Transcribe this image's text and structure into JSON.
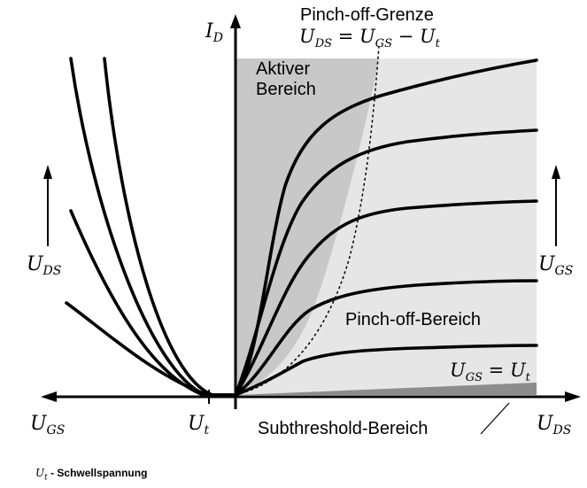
{
  "axes": {
    "id_label": "I",
    "id_sub": "D",
    "uds_label": "U",
    "uds_sub": "DS",
    "ugs_label": "U",
    "ugs_sub": "GS",
    "ut_label": "U",
    "ut_sub": "t"
  },
  "regions": {
    "active_line1": "Aktiver",
    "active_line2": "Bereich",
    "pinchoff_region": "Pinch-off-Bereich",
    "subthreshold_region": "Subthreshold-Bereich"
  },
  "pinchoff_boundary": {
    "title": "Pinch-off-Grenze",
    "equation": {
      "lhs": "U",
      "lhs_sub": "DS",
      "eq": " = ",
      "a": "U",
      "a_sub": "GS",
      "minus": " − ",
      "b": "U",
      "b_sub": "t"
    }
  },
  "threshold_equation": {
    "lhs": "U",
    "lhs_sub": "GS",
    "eq": " = ",
    "rhs": "U",
    "rhs_sub": "t"
  },
  "legend": {
    "symbol": "U",
    "symbol_sub": "t",
    "text": " - Schwellspannung"
  },
  "colors": {
    "active_region": "#c8c8c8",
    "saturation_region": "#e6e6e6",
    "subthreshold_wedge": "#8c8c8c",
    "curves": "#000000"
  },
  "icons": [
    "arrow-up-icon",
    "arrow-left-icon",
    "arrow-right-icon"
  ]
}
